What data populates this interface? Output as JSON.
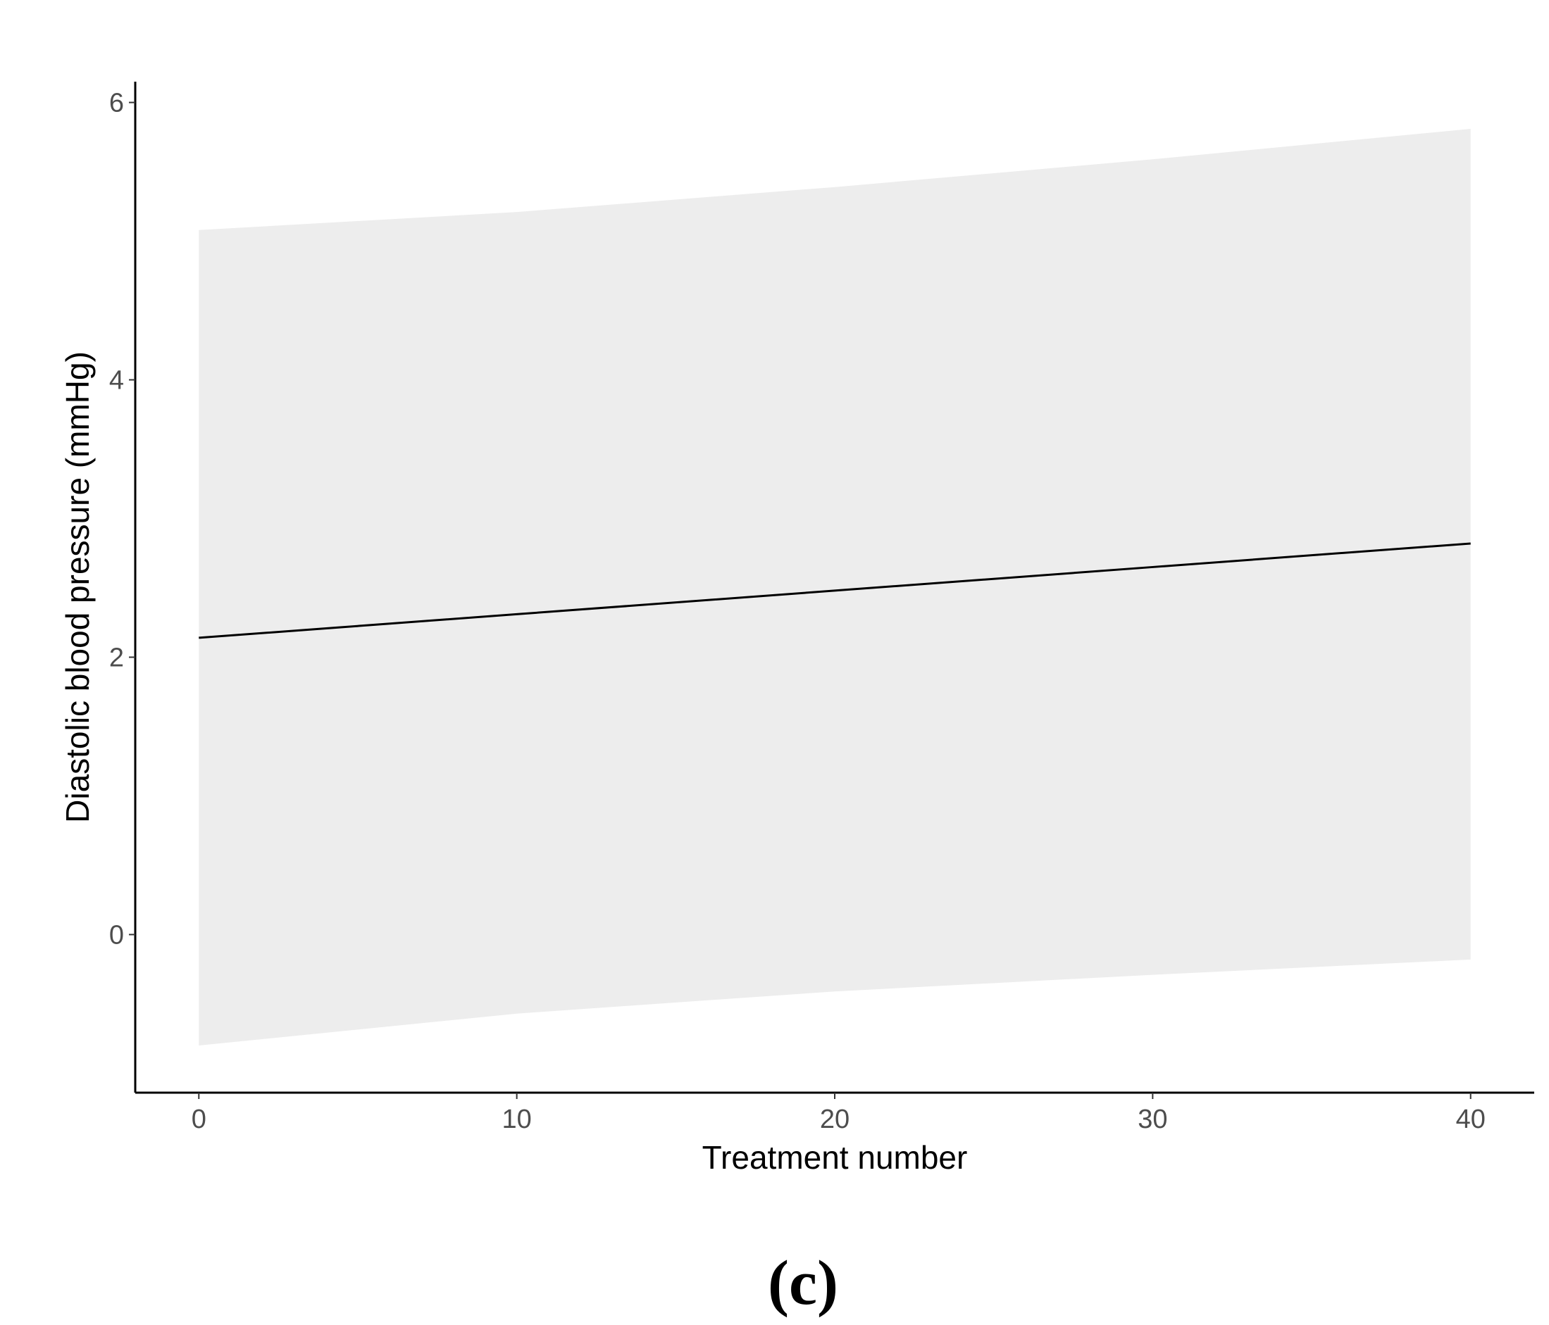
{
  "chart_data": {
    "type": "line",
    "x_label": "Treatment number",
    "y_label": "Diastolic blood pressure (mmHg)",
    "x": [
      0,
      10,
      20,
      30,
      40
    ],
    "values": [
      2.14,
      2.31,
      2.48,
      2.65,
      2.82
    ],
    "lower": [
      -0.8,
      -0.57,
      -0.41,
      -0.29,
      -0.18
    ],
    "upper": [
      5.08,
      5.21,
      5.39,
      5.59,
      5.81
    ],
    "color": "#000000",
    "band_color": "#ededed",
    "xlim": [
      -2,
      42
    ],
    "xticks": [
      0,
      10,
      20,
      30,
      40
    ],
    "ylim": [
      -1.14,
      6.15
    ],
    "yticks": [
      0,
      2,
      4,
      6
    ],
    "grid": false
  },
  "panel_label": "(c)"
}
